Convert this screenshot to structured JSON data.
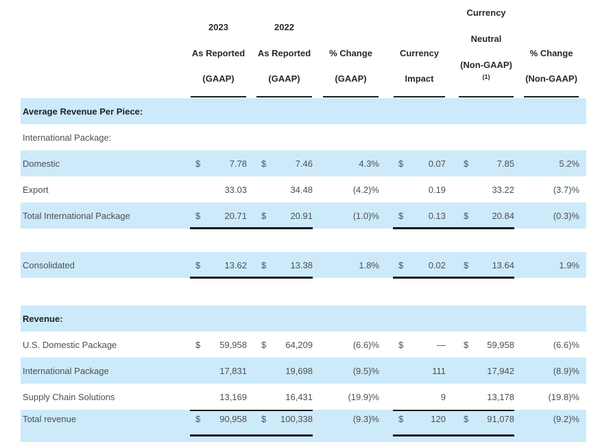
{
  "page": {
    "accent_row_color": "#cdeafb",
    "rule_color": "#121212"
  },
  "table": {
    "header": {
      "c2023": {
        "line1": "2023",
        "line2": "As Reported",
        "line3": "(GAAP)"
      },
      "c2022": {
        "line1": "2022",
        "line2": "As Reported",
        "line3": "(GAAP)"
      },
      "cpct_gaap": {
        "line2": "% Change",
        "line3": "(GAAP)"
      },
      "cimpact": {
        "line2": "Currency",
        "line3": "Impact"
      },
      "cneutral": {
        "line1": "Currency",
        "line2": "Neutral",
        "line3": "(Non-GAAP)",
        "sup": "(1)"
      },
      "cpct_ng": {
        "line2": "% Change",
        "line3": "(Non-GAAP)"
      }
    },
    "rows": [
      {
        "label": "Average Revenue Per Piece:"
      },
      {
        "label": "International Package:"
      },
      {
        "label": "Domestic",
        "d2023": "$",
        "v2023": "7.78",
        "d2022": "$",
        "v2022": "7.46",
        "pct1": "4.3%",
        "dimp": "$",
        "vimp": "0.07",
        "dneu": "$",
        "vneu": "7.85",
        "pct2": "5.2%"
      },
      {
        "label": "Export",
        "v2023": "33.03",
        "v2022": "34.48",
        "pct1": "(4.2)%",
        "vimp": "0.19",
        "vneu": "33.22",
        "pct2": "(3.7)%"
      },
      {
        "label": "Total International Package",
        "d2023": "$",
        "v2023": "20.71",
        "d2022": "$",
        "v2022": "20.91",
        "pct1": "(1.0)%",
        "dimp": "$",
        "vimp": "0.13",
        "dneu": "$",
        "vneu": "20.84",
        "pct2": "(0.3)%"
      },
      {
        "label": "Consolidated",
        "d2023": "$",
        "v2023": "13.62",
        "d2022": "$",
        "v2022": "13.38",
        "pct1": "1.8%",
        "dimp": "$",
        "vimp": "0.02",
        "dneu": "$",
        "vneu": "13.64",
        "pct2": "1.9%"
      },
      {
        "label": "Revenue:"
      },
      {
        "label": "U.S. Domestic Package",
        "d2023": "$",
        "v2023": "59,958",
        "d2022": "$",
        "v2022": "64,209",
        "pct1": "(6.6)%",
        "dimp": "$",
        "vimp": "—",
        "dneu": "$",
        "vneu": "59,958",
        "pct2": "(6.6)%"
      },
      {
        "label": "International Package",
        "v2023": "17,831",
        "v2022": "19,698",
        "pct1": "(9.5)%",
        "vimp": "111",
        "vneu": "17,942",
        "pct2": "(8.9)%"
      },
      {
        "label": "Supply Chain Solutions",
        "v2023": "13,169",
        "v2022": "16,431",
        "pct1": "(19.9)%",
        "vimp": "9",
        "vneu": "13,178",
        "pct2": "(19.8)%"
      },
      {
        "label": "Total revenue",
        "d2023": "$",
        "v2023": "90,958",
        "d2022": "$",
        "v2022": "100,338",
        "pct1": "(9.3)%",
        "dimp": "$",
        "vimp": "120",
        "dneu": "$",
        "vneu": "91,078",
        "pct2": "(9.2)%"
      }
    ]
  }
}
